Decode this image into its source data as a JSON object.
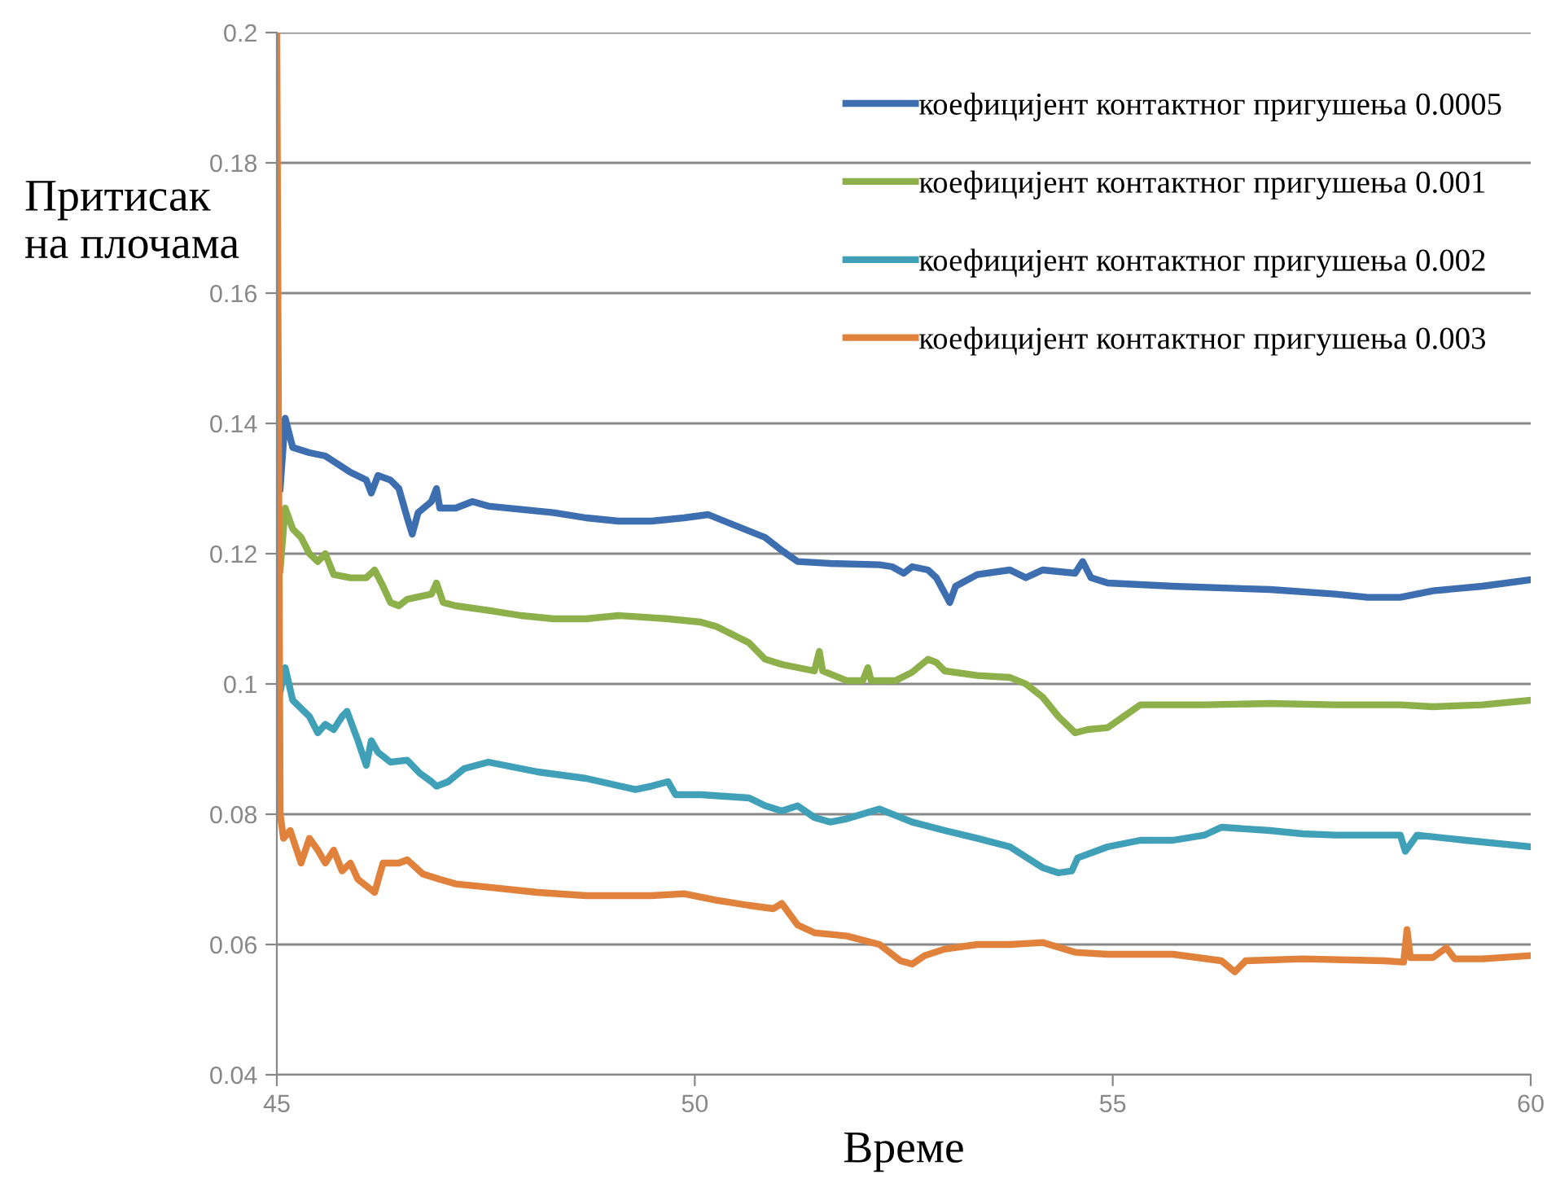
{
  "chart_data": {
    "type": "line",
    "xlabel": "Време",
    "ylabel": "Притисак\nна плочама",
    "xlim": [
      45,
      60
    ],
    "xticks": [
      45,
      50,
      55,
      60
    ],
    "ylim": [
      0.04,
      0.2
    ],
    "yticks": [
      0.04,
      0.06,
      0.08,
      0.1,
      0.12,
      0.14,
      0.16,
      0.18,
      0.2
    ],
    "grid": "y",
    "legend": "top right",
    "marker": "none",
    "line_style": "solid",
    "series": [
      {
        "name": "коефицијент контактног пригушења 0.0005",
        "color": "#3d6eb0",
        "x": [
          45.04,
          45.1,
          45.19,
          45.39,
          45.58,
          45.88,
          46.07,
          46.13,
          46.21,
          46.36,
          46.46,
          46.56,
          46.62,
          46.69,
          46.85,
          46.91,
          46.95,
          47.14,
          47.34,
          47.53,
          48.31,
          48.7,
          49.09,
          49.48,
          49.87,
          50.16,
          50.45,
          50.84,
          51.04,
          51.23,
          51.62,
          52.21,
          52.36,
          52.5,
          52.6,
          52.79,
          52.89,
          53.05,
          53.12,
          53.38,
          53.77,
          53.96,
          54.16,
          54.55,
          54.64,
          54.74,
          54.94,
          55.72,
          56.88,
          57.66,
          58.05,
          58.44,
          58.83,
          59.42,
          60
        ],
        "values": [
          0.13,
          0.1408,
          0.1363,
          0.1355,
          0.135,
          0.1325,
          0.1313,
          0.1293,
          0.132,
          0.1313,
          0.13,
          0.1255,
          0.123,
          0.1263,
          0.128,
          0.13,
          0.127,
          0.127,
          0.128,
          0.1273,
          0.1263,
          0.1255,
          0.125,
          0.125,
          0.1255,
          0.126,
          0.1245,
          0.1225,
          0.1205,
          0.1188,
          0.1185,
          0.1183,
          0.118,
          0.117,
          0.118,
          0.1175,
          0.1163,
          0.1125,
          0.115,
          0.1168,
          0.1175,
          0.1163,
          0.1175,
          0.117,
          0.1188,
          0.1163,
          0.1155,
          0.115,
          0.1145,
          0.1138,
          0.1133,
          0.1133,
          0.1143,
          0.115,
          0.116
        ]
      },
      {
        "name": "коефицијент контактног пригушења 0.001",
        "color": "#8db04a",
        "x": [
          45.04,
          45.1,
          45.19,
          45.29,
          45.39,
          45.49,
          45.58,
          45.68,
          45.88,
          46.07,
          46.17,
          46.27,
          46.36,
          46.46,
          46.56,
          46.85,
          46.91,
          46.99,
          47.14,
          47.53,
          47.92,
          48.31,
          48.7,
          49.09,
          49.68,
          50.07,
          50.26,
          50.65,
          50.84,
          51.04,
          51.43,
          51.49,
          51.53,
          51.82,
          52.01,
          52.07,
          52.11,
          52.4,
          52.6,
          52.79,
          52.89,
          52.99,
          53.38,
          53.77,
          53.96,
          54.16,
          54.35,
          54.55,
          54.7,
          54.94,
          55.13,
          55.33,
          56.1,
          56.88,
          57.66,
          58.44,
          58.83,
          59.42,
          60
        ],
        "values": [
          0.1175,
          0.127,
          0.1238,
          0.1225,
          0.12,
          0.1188,
          0.12,
          0.1168,
          0.1163,
          0.1163,
          0.1175,
          0.115,
          0.1125,
          0.112,
          0.113,
          0.1138,
          0.1155,
          0.1125,
          0.112,
          0.1113,
          0.1105,
          0.11,
          0.11,
          0.1105,
          0.11,
          0.1095,
          0.1088,
          0.1063,
          0.1038,
          0.103,
          0.102,
          0.105,
          0.102,
          0.1005,
          0.1005,
          0.1025,
          0.1005,
          0.1005,
          0.1018,
          0.1038,
          0.1033,
          0.102,
          0.1013,
          0.101,
          0.1,
          0.098,
          0.095,
          0.0925,
          0.093,
          0.0933,
          0.095,
          0.0968,
          0.0968,
          0.097,
          0.0968,
          0.0968,
          0.0965,
          0.0968,
          0.0975
        ]
      },
      {
        "name": "коефицијент контактног пригушења 0.002",
        "color": "#3fa0b8",
        "x": [
          45.04,
          45.1,
          45.19,
          45.39,
          45.49,
          45.58,
          45.68,
          45.78,
          45.84,
          45.97,
          46.07,
          46.13,
          46.21,
          46.36,
          46.56,
          46.71,
          46.85,
          46.91,
          47.05,
          47.24,
          47.53,
          48.12,
          48.7,
          49.29,
          49.48,
          49.68,
          49.77,
          50.07,
          50.65,
          50.84,
          51.04,
          51.23,
          51.43,
          51.62,
          51.82,
          52.21,
          52.6,
          52.99,
          53.38,
          53.77,
          54.16,
          54.35,
          54.51,
          54.58,
          54.94,
          55.33,
          55.72,
          56.1,
          56.3,
          56.88,
          57.27,
          57.66,
          58.44,
          58.5,
          58.64,
          59.22,
          60
        ],
        "values": [
          0.0988,
          0.1025,
          0.0975,
          0.095,
          0.0925,
          0.0938,
          0.093,
          0.095,
          0.0958,
          0.0913,
          0.0875,
          0.0913,
          0.0895,
          0.088,
          0.0883,
          0.0863,
          0.085,
          0.0843,
          0.085,
          0.087,
          0.088,
          0.0865,
          0.0855,
          0.0838,
          0.0843,
          0.085,
          0.083,
          0.083,
          0.0825,
          0.0813,
          0.0805,
          0.0813,
          0.0795,
          0.0788,
          0.0793,
          0.0808,
          0.0788,
          0.0775,
          0.0763,
          0.075,
          0.0718,
          0.071,
          0.0713,
          0.0733,
          0.075,
          0.076,
          0.076,
          0.0768,
          0.078,
          0.0775,
          0.077,
          0.0768,
          0.0768,
          0.0743,
          0.0768,
          0.076,
          0.075
        ]
      },
      {
        "name": "коефицијент контактног пригушења 0.003",
        "color": "#e0823c",
        "x": [
          45.0,
          45.02,
          45.04,
          45.08,
          45.16,
          45.29,
          45.39,
          45.49,
          45.58,
          45.68,
          45.78,
          45.88,
          45.97,
          46.17,
          46.27,
          46.46,
          46.56,
          46.75,
          46.95,
          47.14,
          47.53,
          48.12,
          48.7,
          49.48,
          49.87,
          50.26,
          50.65,
          50.94,
          51.04,
          51.23,
          51.43,
          51.82,
          52.21,
          52.46,
          52.6,
          52.75,
          52.99,
          53.38,
          53.77,
          54.16,
          54.55,
          54.94,
          55.72,
          56.3,
          56.46,
          56.59,
          57.27,
          58.25,
          58.48,
          58.52,
          58.56,
          58.83,
          58.99,
          59.09,
          59.42,
          60
        ],
        "values": [
          0.2,
          0.14,
          0.08,
          0.0763,
          0.0775,
          0.0725,
          0.0763,
          0.0745,
          0.0725,
          0.0745,
          0.0713,
          0.0725,
          0.07,
          0.068,
          0.0725,
          0.0725,
          0.073,
          0.0708,
          0.07,
          0.0693,
          0.0688,
          0.068,
          0.0675,
          0.0675,
          0.0678,
          0.0668,
          0.066,
          0.0655,
          0.0663,
          0.063,
          0.0618,
          0.0613,
          0.06,
          0.0575,
          0.057,
          0.0583,
          0.0593,
          0.06,
          0.06,
          0.0603,
          0.0588,
          0.0585,
          0.0585,
          0.0575,
          0.0558,
          0.0575,
          0.0578,
          0.0575,
          0.0573,
          0.0623,
          0.058,
          0.058,
          0.0595,
          0.0578,
          0.0578,
          0.0583
        ]
      }
    ]
  }
}
